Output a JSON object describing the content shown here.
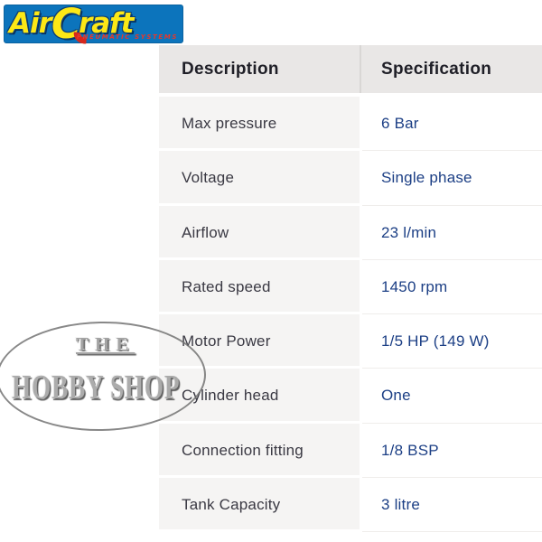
{
  "logo": {
    "brand_air": "Air",
    "brand_c": "C",
    "brand_raft": "raft",
    "tagline": "PNEUMATIC SYSTEMS",
    "bg_color": "#0c74bc",
    "text_color": "#fce816",
    "accent_red": "#d6281e"
  },
  "stamp": {
    "line1": "THE",
    "line2": "HOBBY SHOP",
    "color": "#9a9a9a"
  },
  "table": {
    "headers": [
      "Description",
      "Specification"
    ],
    "rows": [
      {
        "label": "Max pressure",
        "value": "6 Bar"
      },
      {
        "label": "Voltage",
        "value": "Single phase"
      },
      {
        "label": "Airflow",
        "value": "23 l/min"
      },
      {
        "label": "Rated speed",
        "value": "1450 rpm"
      },
      {
        "label": "Motor Power",
        "value": "1/5 HP (149 W)"
      },
      {
        "label": "Cylinder head",
        "value": "One"
      },
      {
        "label": "Connection fitting",
        "value": "1/8 BSP"
      },
      {
        "label": "Tank Capacity",
        "value": "3 litre"
      }
    ],
    "header_bg": "#e9e7e6",
    "label_color": "#3a3943",
    "value_color": "#1c3f85"
  }
}
